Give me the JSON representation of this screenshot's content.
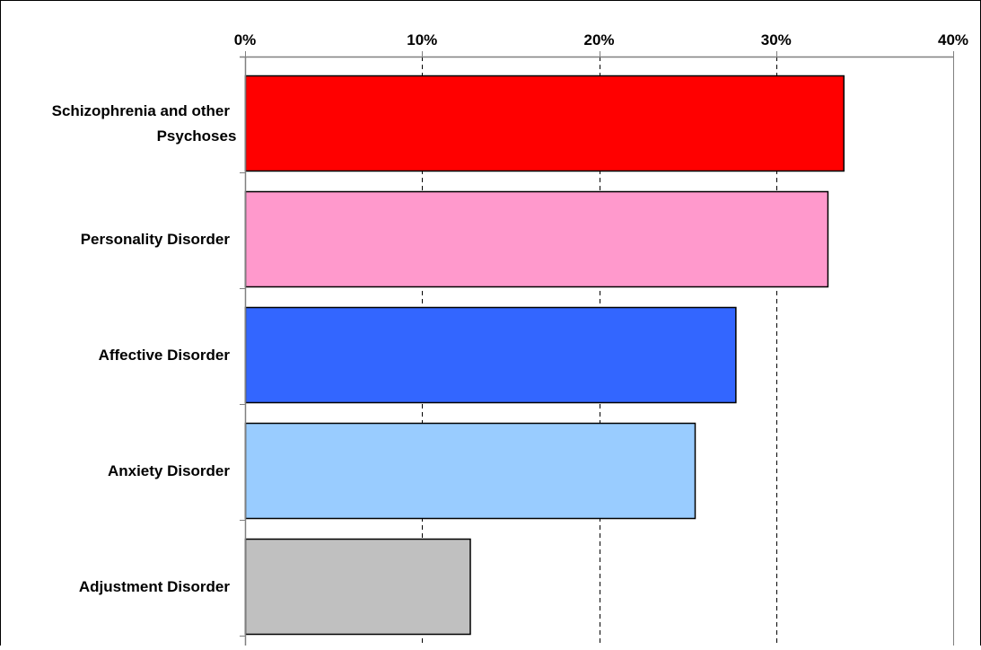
{
  "chart_data": {
    "type": "bar",
    "orientation": "horizontal",
    "title": "",
    "xlabel": "",
    "ylabel": "",
    "categories": [
      "Schizophrenia and other Psychoses",
      "Personality Disorder",
      "Affective Disorder",
      "Anxiety Disorder",
      "Adjustment Disorder"
    ],
    "category_lines": [
      [
        "Schizophrenia and other",
        "Psychoses"
      ],
      [
        "Personality Disorder"
      ],
      [
        "Affective Disorder"
      ],
      [
        "Anxiety Disorder"
      ],
      [
        "Adjustment Disorder"
      ]
    ],
    "values": [
      33.8,
      32.9,
      27.7,
      25.4,
      12.7
    ],
    "unit": "%",
    "xlim": [
      0,
      40
    ],
    "ticks": [
      0,
      10,
      20,
      30,
      40
    ],
    "tick_labels": [
      "0%",
      "10%",
      "20%",
      "30%",
      "40%"
    ],
    "axis_position": "top",
    "grid": true,
    "grid_style": "dashed vertical",
    "legend": "none",
    "colors": [
      "#ff0000",
      "#ff99cc",
      "#3366ff",
      "#99ccff",
      "#c0c0c0"
    ],
    "bar_outline": "#000000",
    "axis_color": "#808080"
  }
}
